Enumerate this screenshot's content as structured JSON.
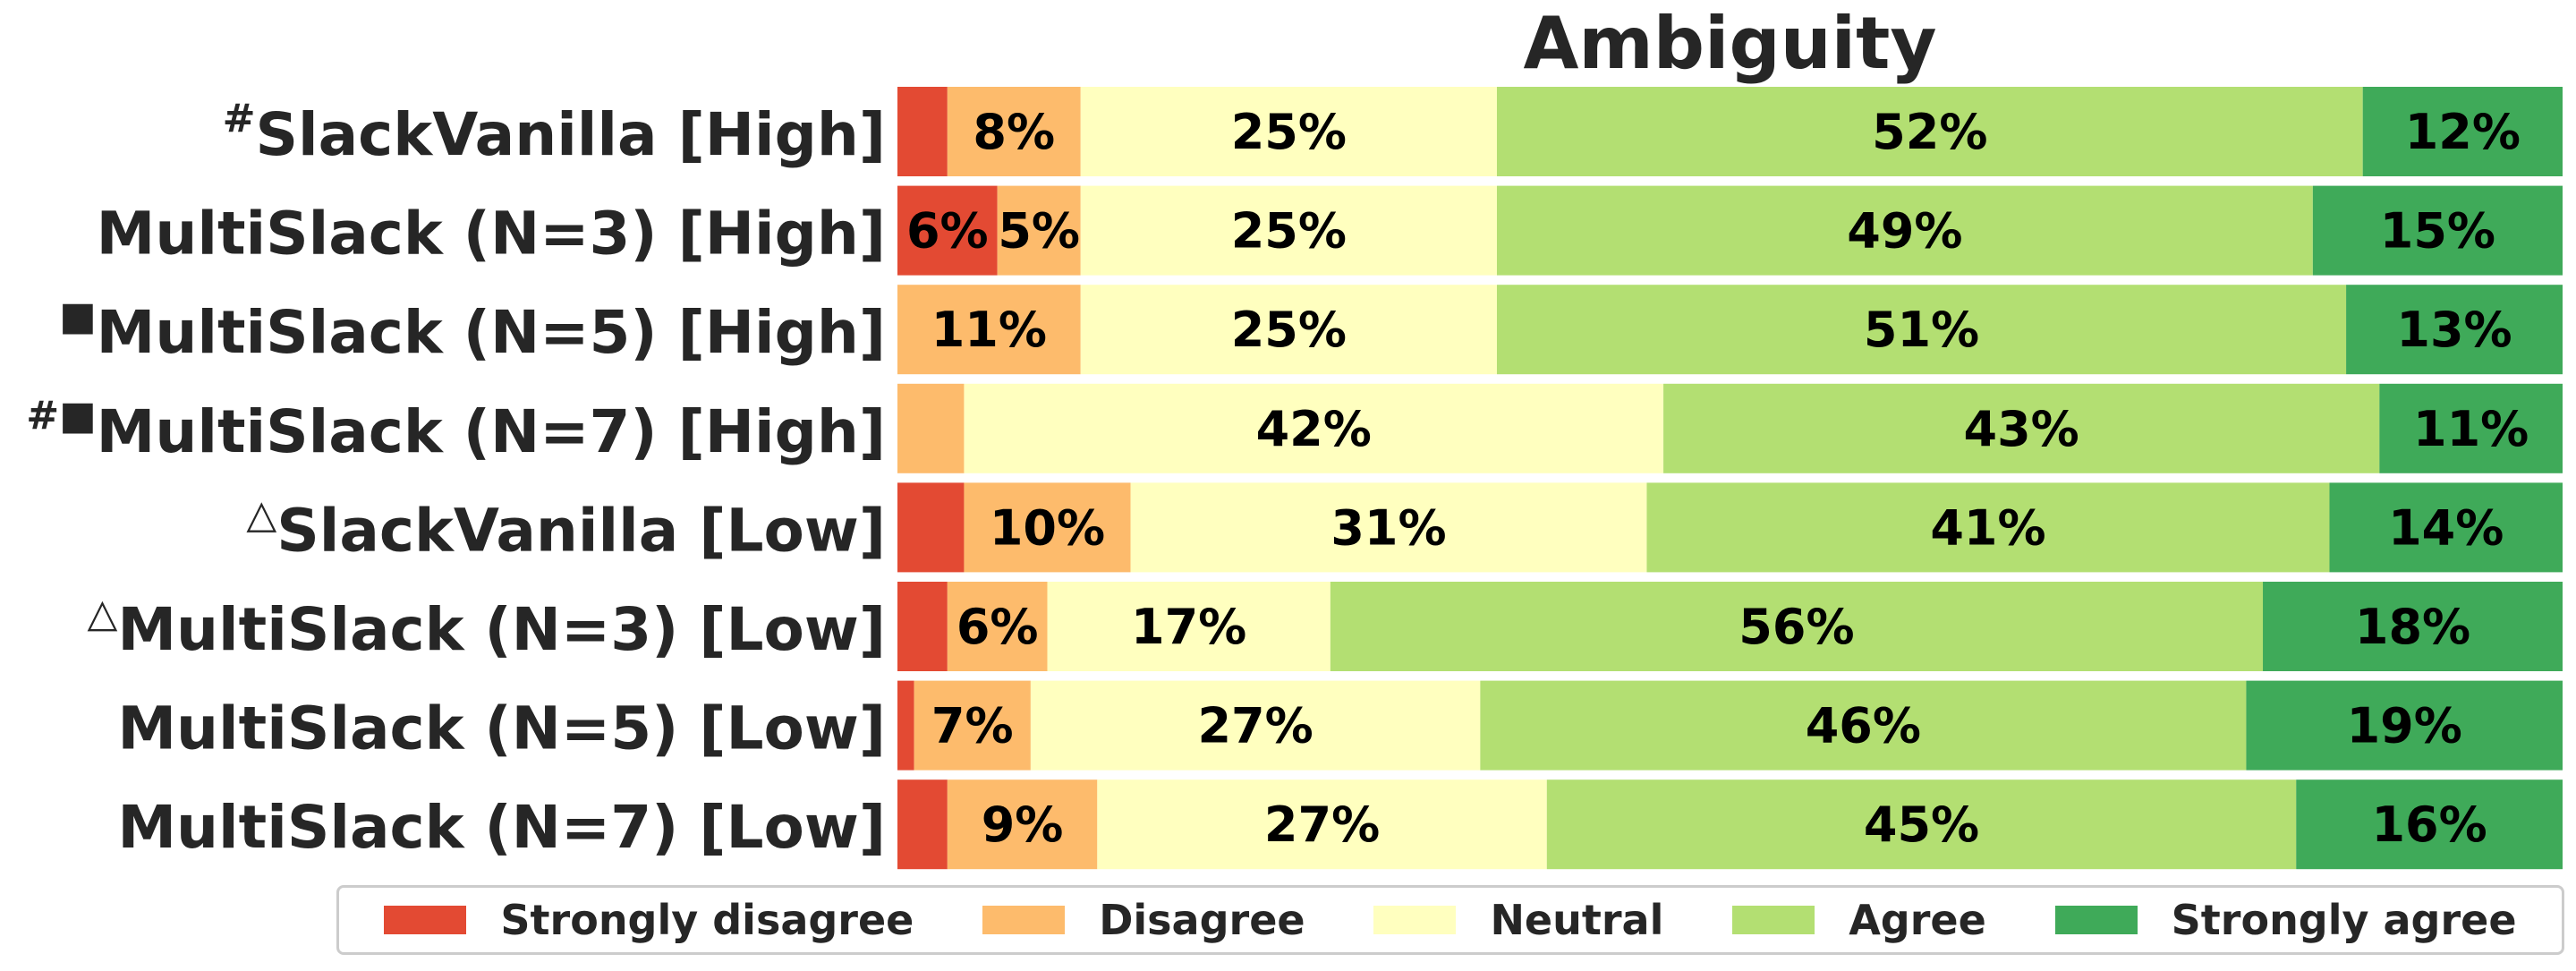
{
  "chart_data": {
    "type": "bar",
    "orientation": "horizontal",
    "stacked": true,
    "title": "Ambiguity",
    "xlim": [
      0,
      100
    ],
    "categories": [
      {
        "marker": "#",
        "label": "SlackVanilla [High]"
      },
      {
        "marker": "",
        "label": "MultiSlack (N=3) [High]"
      },
      {
        "marker": "■",
        "label": "MultiSlack (N=5) [High]"
      },
      {
        "marker": "#■",
        "label": "MultiSlack (N=7) [High]"
      },
      {
        "marker": "△",
        "label": "SlackVanilla [Low]"
      },
      {
        "marker": "△",
        "label": "MultiSlack (N=3) [Low]"
      },
      {
        "marker": "",
        "label": "MultiSlack (N=5) [Low]"
      },
      {
        "marker": "",
        "label": "MultiSlack (N=7) [Low]"
      }
    ],
    "series": [
      {
        "name": "Strongly disagree",
        "color": "#e34a33",
        "values": [
          3,
          6,
          0,
          0,
          4,
          3,
          1,
          3
        ],
        "labels": [
          "",
          "6%",
          "",
          "",
          "",
          "",
          "",
          ""
        ]
      },
      {
        "name": "Disagree",
        "color": "#fdbb6c",
        "values": [
          8,
          5,
          11,
          4,
          10,
          6,
          7,
          9
        ],
        "labels": [
          "8%",
          "5%",
          "11%",
          "",
          "10%",
          "6%",
          "7%",
          "9%"
        ]
      },
      {
        "name": "Neutral",
        "color": "#ffffbf",
        "values": [
          25,
          25,
          25,
          42,
          31,
          17,
          27,
          27
        ],
        "labels": [
          "25%",
          "25%",
          "25%",
          "42%",
          "31%",
          "17%",
          "27%",
          "27%"
        ]
      },
      {
        "name": "Agree",
        "color": "#b3df72",
        "values": [
          52,
          49,
          51,
          43,
          41,
          56,
          46,
          45
        ],
        "labels": [
          "52%",
          "49%",
          "51%",
          "43%",
          "41%",
          "56%",
          "46%",
          "45%"
        ]
      },
      {
        "name": "Strongly agree",
        "color": "#3faa59",
        "values": [
          12,
          15,
          13,
          11,
          14,
          18,
          19,
          16
        ],
        "labels": [
          "12%",
          "15%",
          "13%",
          "11%",
          "14%",
          "18%",
          "19%",
          "16%"
        ]
      }
    ],
    "legend_position": "bottom",
    "grid": false
  }
}
